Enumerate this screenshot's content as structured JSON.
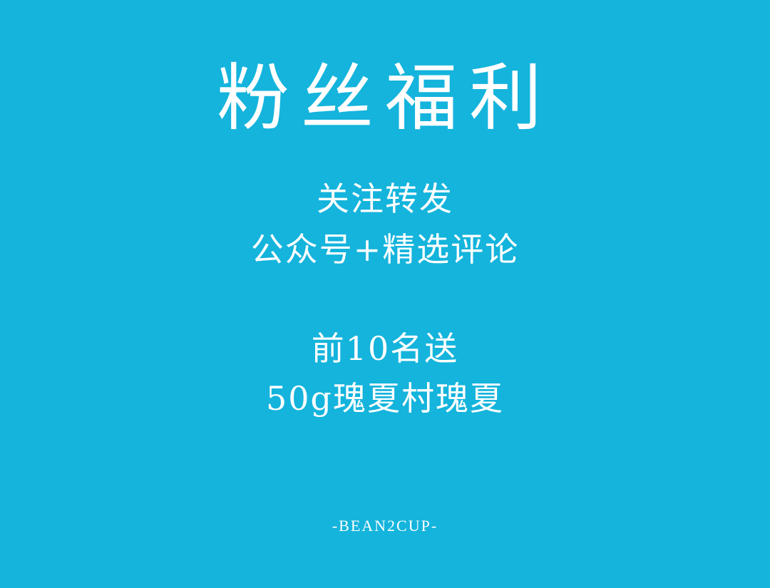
{
  "poster": {
    "background_color": "#14b4dc",
    "text_color": "#ffffff",
    "title": "粉丝福利",
    "lines": [
      "关注转发",
      "公众号+精选评论",
      "前10名送",
      "50g瑰夏村瑰夏"
    ],
    "footer": "-BEAN2CUP-"
  }
}
